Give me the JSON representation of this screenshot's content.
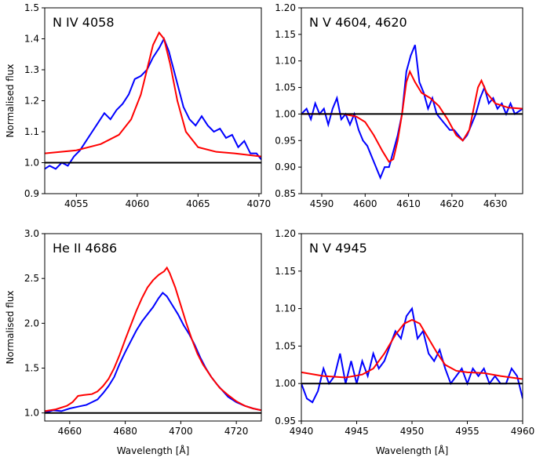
{
  "chart_data": [
    {
      "type": "line",
      "title": "N IV 4058",
      "ylabel": "Normalised flux",
      "xlim": [
        4052.4,
        4070.2
      ],
      "ylim": [
        0.9,
        1.5
      ],
      "xticks": [
        4055,
        4060,
        4065,
        4070
      ],
      "yticks": [
        0.9,
        {
          "value": 1,
          "label": "1.0"
        },
        1.1,
        1.2,
        1.3,
        1.4,
        1.5
      ],
      "hline": 1,
      "series": [
        {
          "color": "#0000ff",
          "x": [
            4052.4,
            4052.8,
            4053.3,
            4053.8,
            4054.3,
            4054.8,
            4055.3,
            4055.8,
            4056.3,
            4056.8,
            4057.3,
            4057.8,
            4058.3,
            4058.8,
            4059.3,
            4059.8,
            4060.3,
            4060.8,
            4061.3,
            4061.8,
            4062.2,
            4062.6,
            4063.0,
            4063.4,
            4063.8,
            4064.3,
            4064.8,
            4065.3,
            4065.8,
            4066.3,
            4066.8,
            4067.3,
            4067.8,
            4068.3,
            4068.8,
            4069.3,
            4069.8,
            4070.2
          ],
          "values": [
            0.98,
            0.99,
            0.98,
            1.0,
            0.99,
            1.02,
            1.04,
            1.07,
            1.1,
            1.13,
            1.16,
            1.14,
            1.17,
            1.19,
            1.22,
            1.27,
            1.28,
            1.3,
            1.34,
            1.37,
            1.4,
            1.36,
            1.3,
            1.24,
            1.18,
            1.14,
            1.12,
            1.15,
            1.12,
            1.1,
            1.11,
            1.08,
            1.09,
            1.05,
            1.07,
            1.03,
            1.03,
            1.01
          ]
        },
        {
          "color": "#ff0000",
          "x": [
            4052.4,
            4055,
            4057,
            4058.5,
            4059.5,
            4060.3,
            4060.8,
            4061.3,
            4061.8,
            4062.2,
            4062.7,
            4063.3,
            4064,
            4065,
            4066.5,
            4068,
            4070.2
          ],
          "values": [
            1.03,
            1.04,
            1.06,
            1.09,
            1.14,
            1.22,
            1.3,
            1.38,
            1.42,
            1.4,
            1.32,
            1.2,
            1.1,
            1.05,
            1.035,
            1.03,
            1.02
          ]
        }
      ]
    },
    {
      "type": "line",
      "title": "N V 4604, 4620",
      "xlim": [
        4585.3,
        4636.3
      ],
      "ylim": [
        0.85,
        1.2
      ],
      "xticks": [
        4590,
        4600,
        4610,
        4620,
        4630
      ],
      "yticks": [
        0.85,
        {
          "value": 0.9,
          "label": "0.90"
        },
        0.95,
        {
          "value": 1,
          "label": "1.00"
        },
        1.05,
        {
          "value": 1.1,
          "label": "1.10"
        },
        1.15,
        {
          "value": 1.2,
          "label": "1.20"
        }
      ],
      "hline": 1,
      "series": [
        {
          "color": "#0000ff",
          "x": [
            4585.3,
            4586.5,
            4587.5,
            4588.5,
            4589.5,
            4590.5,
            4591.5,
            4592.5,
            4593.5,
            4594.5,
            4595.5,
            4596.5,
            4597.5,
            4598.5,
            4599.5,
            4600.5,
            4601.5,
            4602.5,
            4603.5,
            4604.5,
            4605.5,
            4606.5,
            4607.5,
            4608.5,
            4609.5,
            4610.5,
            4611.5,
            4612.5,
            4613.5,
            4614.5,
            4615.5,
            4616.5,
            4617.5,
            4618.5,
            4619.5,
            4620.5,
            4621.5,
            4622.5,
            4623.5,
            4624.5,
            4625.5,
            4626.5,
            4627.5,
            4628.5,
            4629.5,
            4630.5,
            4631.5,
            4632.5,
            4633.5,
            4634.5,
            4636.3
          ],
          "values": [
            1.0,
            1.01,
            0.99,
            1.02,
            1.0,
            1.01,
            0.98,
            1.01,
            1.03,
            0.99,
            1.0,
            0.98,
            1.0,
            0.97,
            0.95,
            0.94,
            0.92,
            0.9,
            0.88,
            0.9,
            0.9,
            0.93,
            0.96,
            1.0,
            1.08,
            1.11,
            1.13,
            1.06,
            1.04,
            1.01,
            1.03,
            1.0,
            0.99,
            0.98,
            0.97,
            0.97,
            0.96,
            0.95,
            0.96,
            0.98,
            1.0,
            1.03,
            1.05,
            1.02,
            1.03,
            1.01,
            1.02,
            1.0,
            1.02,
            1.0,
            1.01
          ]
        },
        {
          "color": "#ff0000",
          "x": [
            4585.3,
            4590,
            4595,
            4598,
            4600,
            4602,
            4604,
            4605.5,
            4606.5,
            4607.5,
            4608.5,
            4609.5,
            4610.3,
            4611.5,
            4613,
            4615,
            4617,
            4619,
            4621,
            4622.5,
            4624,
            4625,
            4626,
            4626.8,
            4628,
            4630,
            4633,
            4636.3
          ],
          "values": [
            1.0,
            1.0,
            1.0,
            0.995,
            0.985,
            0.96,
            0.93,
            0.91,
            0.915,
            0.95,
            1.0,
            1.06,
            1.08,
            1.06,
            1.04,
            1.03,
            1.015,
            0.99,
            0.96,
            0.95,
            0.97,
            1.01,
            1.05,
            1.063,
            1.04,
            1.02,
            1.012,
            1.01
          ]
        }
      ]
    },
    {
      "type": "line",
      "title": "He II 4686",
      "ylabel": "Normalised flux",
      "xlabel": "Wavelength [Å]",
      "xlim": [
        4651,
        4729
      ],
      "ylim": [
        0.91,
        3.0
      ],
      "xticks": [
        4660,
        4680,
        4700,
        4720
      ],
      "yticks": [
        {
          "value": 1,
          "label": "1.0"
        },
        1.5,
        {
          "value": 2,
          "label": "2.0"
        },
        2.5,
        {
          "value": 3,
          "label": "3.0"
        }
      ],
      "hline": 1,
      "series": [
        {
          "color": "#0000ff",
          "x": [
            4651,
            4654,
            4657,
            4660,
            4663,
            4666,
            4668,
            4670,
            4672,
            4674,
            4676,
            4678,
            4680,
            4682,
            4684,
            4686,
            4688,
            4690,
            4692,
            4693.5,
            4695,
            4697,
            4699,
            4701,
            4703,
            4705,
            4707,
            4709,
            4711,
            4713,
            4715,
            4717,
            4720,
            4723,
            4726,
            4729
          ],
          "values": [
            1.0,
            1.03,
            1.02,
            1.05,
            1.07,
            1.09,
            1.12,
            1.15,
            1.22,
            1.3,
            1.4,
            1.55,
            1.68,
            1.8,
            1.92,
            2.02,
            2.1,
            2.18,
            2.28,
            2.34,
            2.3,
            2.2,
            2.1,
            1.98,
            1.88,
            1.76,
            1.62,
            1.5,
            1.4,
            1.32,
            1.25,
            1.18,
            1.12,
            1.08,
            1.05,
            1.03
          ]
        },
        {
          "color": "#ff0000",
          "x": [
            4651,
            4655,
            4659,
            4661,
            4663,
            4665,
            4668,
            4670,
            4672,
            4674,
            4676,
            4678,
            4680,
            4682,
            4684,
            4686,
            4688,
            4690,
            4692,
            4694,
            4695,
            4696,
            4698,
            4700,
            4702,
            4704,
            4706,
            4708,
            4711,
            4714,
            4717,
            4720,
            4723,
            4726,
            4729
          ],
          "values": [
            1.02,
            1.04,
            1.08,
            1.12,
            1.19,
            1.2,
            1.21,
            1.24,
            1.3,
            1.38,
            1.5,
            1.65,
            1.82,
            1.98,
            2.14,
            2.28,
            2.4,
            2.48,
            2.54,
            2.58,
            2.62,
            2.56,
            2.4,
            2.2,
            2.0,
            1.82,
            1.66,
            1.54,
            1.4,
            1.28,
            1.2,
            1.13,
            1.08,
            1.05,
            1.03
          ]
        }
      ]
    },
    {
      "type": "line",
      "title": "N V 4945",
      "xlabel": "Wavelength [Å]",
      "xlim": [
        4940,
        4960
      ],
      "ylim": [
        0.95,
        1.2
      ],
      "xticks": [
        4940,
        4945,
        4950,
        4955,
        4960
      ],
      "yticks": [
        0.95,
        {
          "value": 1,
          "label": "1.00"
        },
        1.05,
        {
          "value": 1.1,
          "label": "1.10"
        },
        1.15,
        {
          "value": 1.2,
          "label": "1.20"
        }
      ],
      "hline": 1,
      "series": [
        {
          "color": "#0000ff",
          "x": [
            4940,
            4940.5,
            4941,
            4941.5,
            4942,
            4942.5,
            4943,
            4943.5,
            4944,
            4944.5,
            4945,
            4945.5,
            4946,
            4946.5,
            4947,
            4947.5,
            4948,
            4948.5,
            4949,
            4949.5,
            4950,
            4950.5,
            4951,
            4951.5,
            4952,
            4952.5,
            4953,
            4953.5,
            4954,
            4954.5,
            4955,
            4955.5,
            4956,
            4956.5,
            4957,
            4957.5,
            4958,
            4958.5,
            4959,
            4959.5,
            4960
          ],
          "values": [
            1.0,
            0.98,
            0.975,
            0.99,
            1.02,
            1.0,
            1.01,
            1.04,
            1.0,
            1.03,
            1.0,
            1.03,
            1.01,
            1.04,
            1.02,
            1.03,
            1.05,
            1.07,
            1.06,
            1.09,
            1.1,
            1.06,
            1.07,
            1.04,
            1.03,
            1.045,
            1.02,
            1.0,
            1.01,
            1.02,
            1.0,
            1.02,
            1.01,
            1.02,
            1.0,
            1.01,
            1.0,
            1.0,
            1.02,
            1.01,
            0.98
          ]
        },
        {
          "color": "#ff0000",
          "x": [
            4940,
            4942,
            4944,
            4945.5,
            4946.5,
            4947.5,
            4948.5,
            4949.3,
            4950,
            4950.7,
            4951.5,
            4952.3,
            4953,
            4954,
            4955,
            4956.5,
            4958,
            4960
          ],
          "values": [
            1.015,
            1.01,
            1.008,
            1.012,
            1.02,
            1.04,
            1.065,
            1.08,
            1.085,
            1.08,
            1.06,
            1.04,
            1.025,
            1.017,
            1.015,
            1.014,
            1.01,
            1.006
          ]
        }
      ]
    }
  ]
}
